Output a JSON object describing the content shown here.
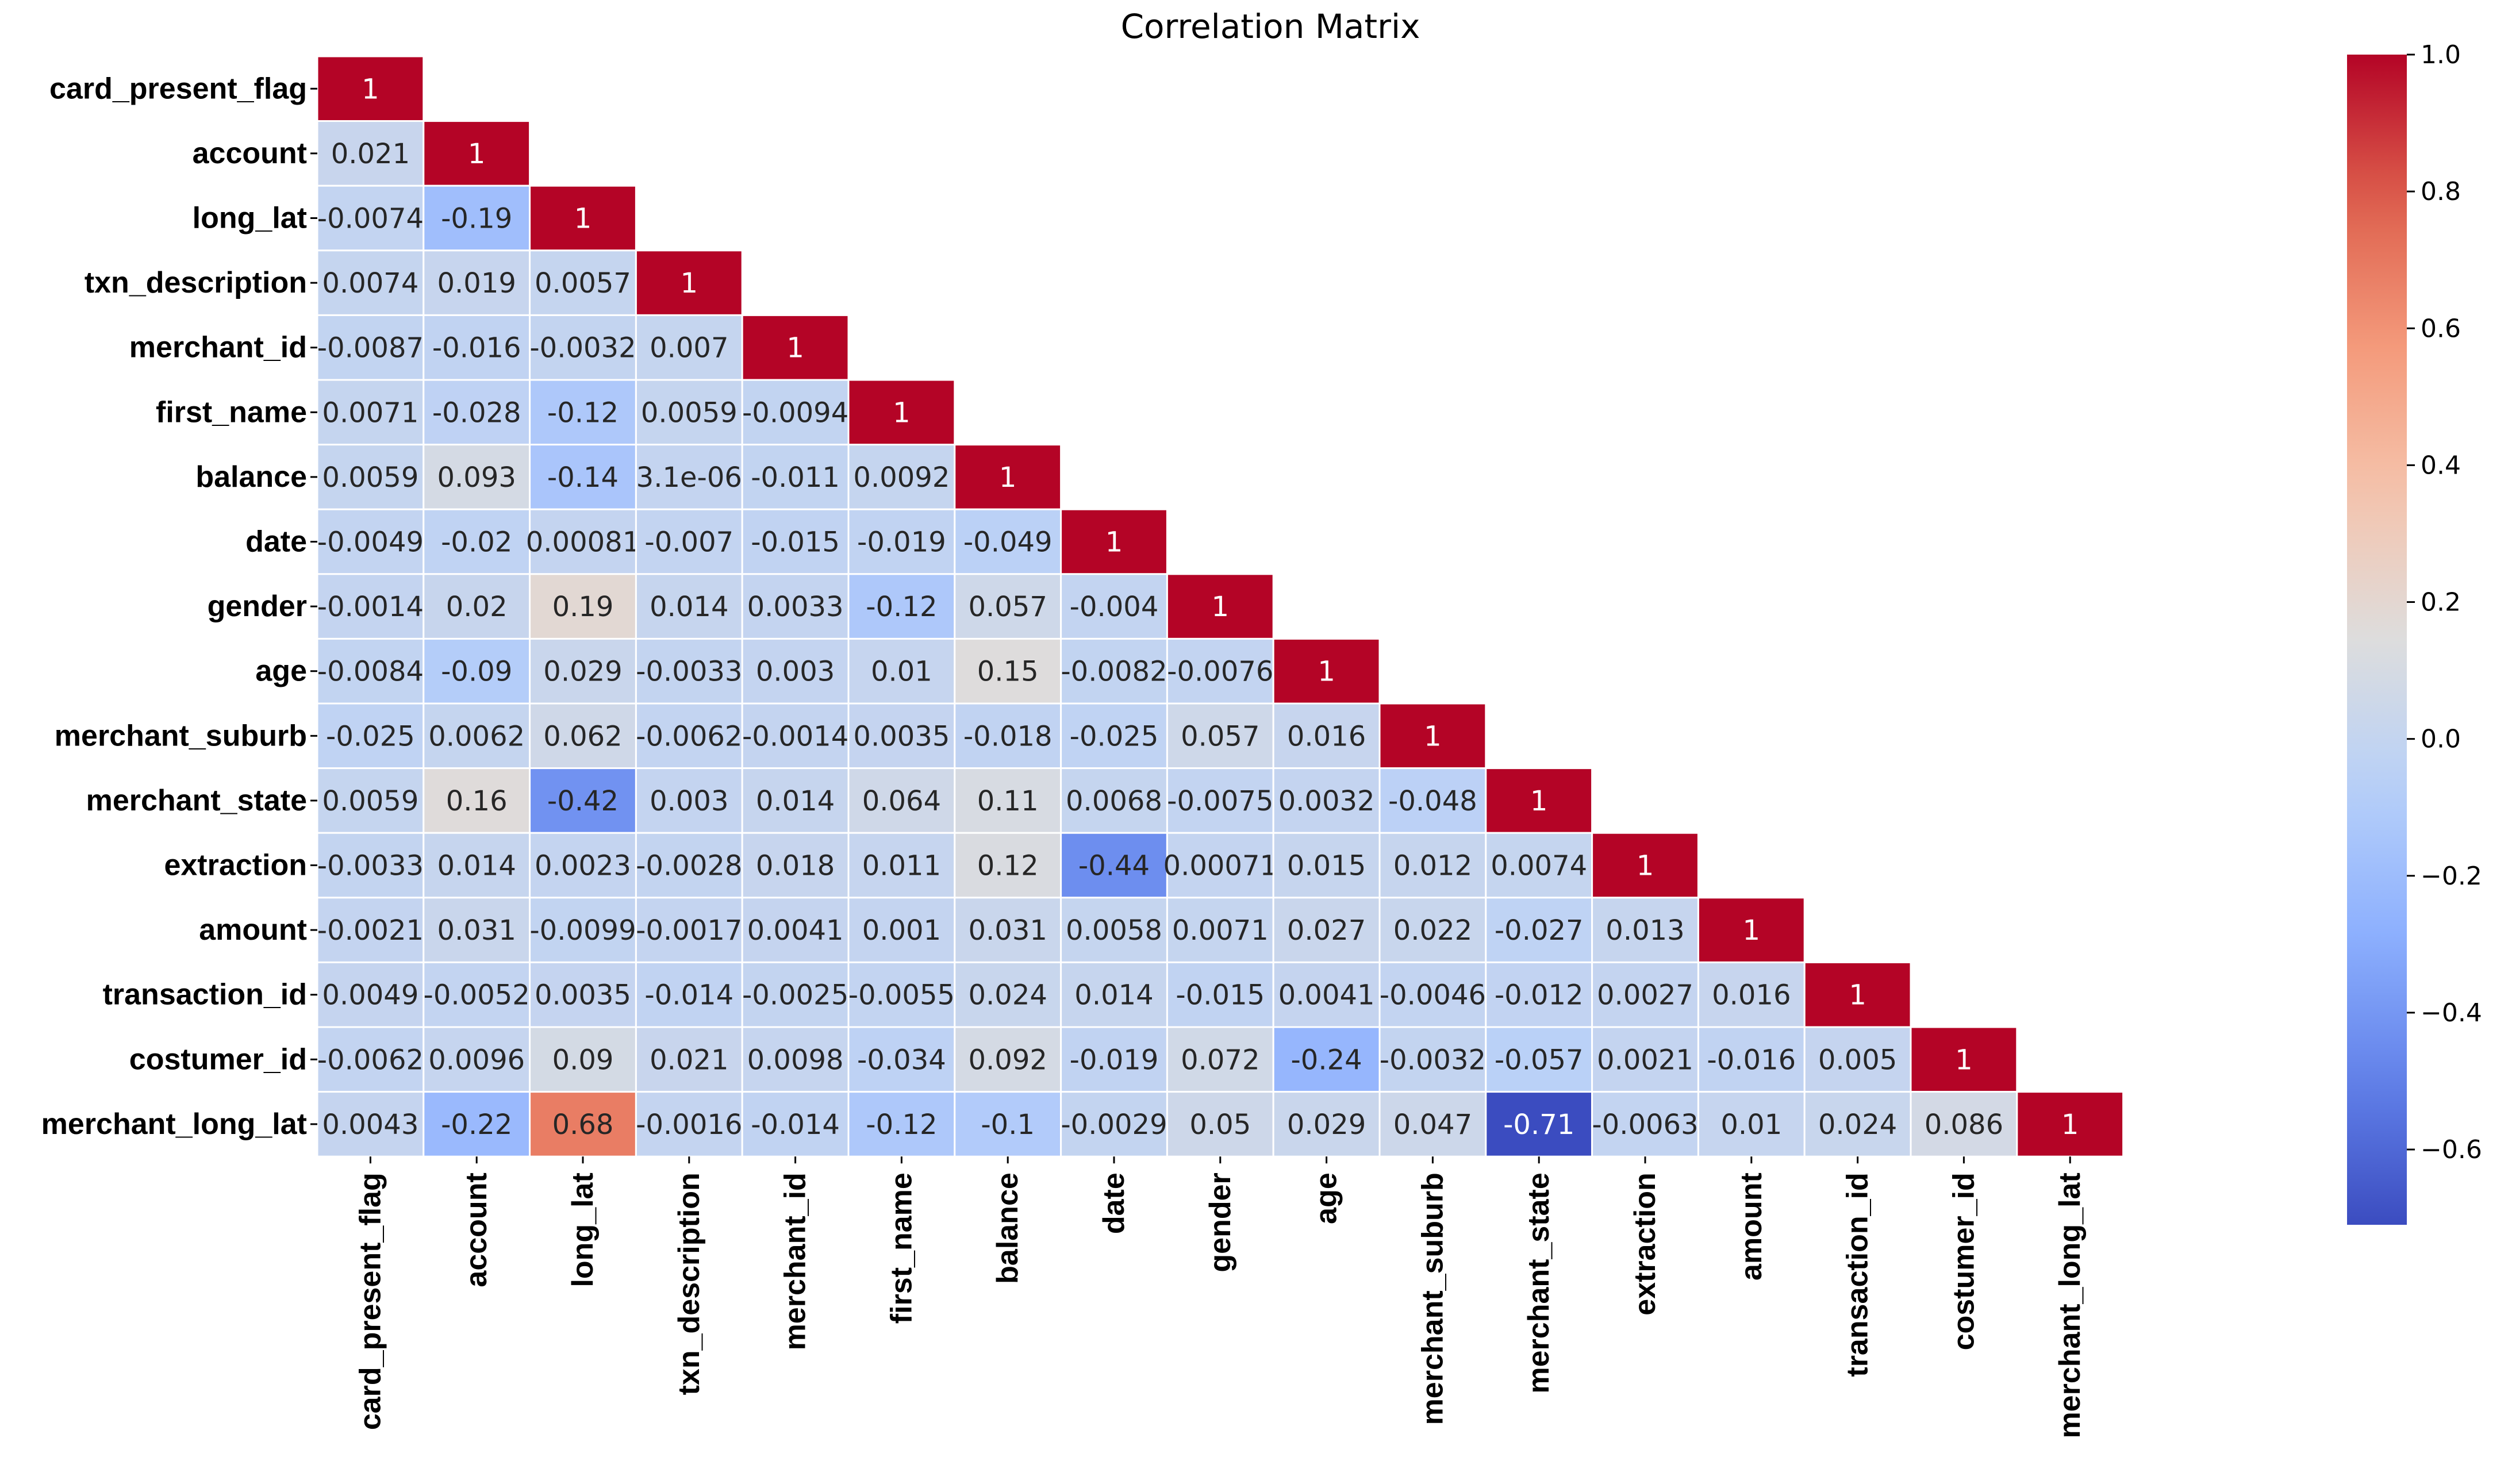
{
  "chart_data": {
    "type": "heatmap",
    "title": "Correlation Matrix",
    "variables": [
      "card_present_flag",
      "account",
      "long_lat",
      "txn_description",
      "merchant_id",
      "first_name",
      "balance",
      "date",
      "gender",
      "age",
      "merchant_suburb",
      "merchant_state",
      "extraction",
      "amount",
      "transaction_id",
      "costumer_id",
      "merchant_long_lat"
    ],
    "matrix_shape": "lower-triangle",
    "rows": [
      {
        "name": "card_present_flag",
        "values": [
          1
        ],
        "labels": [
          "1"
        ]
      },
      {
        "name": "account",
        "values": [
          0.021,
          1
        ],
        "labels": [
          "0.021",
          "1"
        ]
      },
      {
        "name": "long_lat",
        "values": [
          -0.0074,
          -0.19,
          1
        ],
        "labels": [
          "-0.0074",
          "-0.19",
          "1"
        ]
      },
      {
        "name": "txn_description",
        "values": [
          0.0074,
          0.019,
          0.0057,
          1
        ],
        "labels": [
          "0.0074",
          "0.019",
          "0.0057",
          "1"
        ]
      },
      {
        "name": "merchant_id",
        "values": [
          -0.0087,
          -0.016,
          -0.0032,
          0.007,
          1
        ],
        "labels": [
          "-0.0087",
          "-0.016",
          "-0.0032",
          "0.007",
          "1"
        ]
      },
      {
        "name": "first_name",
        "values": [
          0.0071,
          -0.028,
          -0.12,
          0.0059,
          -0.0094,
          1
        ],
        "labels": [
          "0.0071",
          "-0.028",
          "-0.12",
          "0.0059",
          "-0.0094",
          "1"
        ]
      },
      {
        "name": "balance",
        "values": [
          0.0059,
          0.093,
          -0.14,
          3.1e-06,
          -0.011,
          0.0092,
          1
        ],
        "labels": [
          "0.0059",
          "0.093",
          "-0.14",
          "3.1e-06",
          "-0.011",
          "0.0092",
          "1"
        ]
      },
      {
        "name": "date",
        "values": [
          -0.0049,
          -0.02,
          0.00081,
          -0.007,
          -0.015,
          -0.019,
          -0.049,
          1
        ],
        "labels": [
          "-0.0049",
          "-0.02",
          "0.00081",
          "-0.007",
          "-0.015",
          "-0.019",
          "-0.049",
          "1"
        ]
      },
      {
        "name": "gender",
        "values": [
          -0.0014,
          0.02,
          0.19,
          0.014,
          0.0033,
          -0.12,
          0.057,
          -0.004,
          1
        ],
        "labels": [
          "-0.0014",
          "0.02",
          "0.19",
          "0.014",
          "0.0033",
          "-0.12",
          "0.057",
          "-0.004",
          "1"
        ]
      },
      {
        "name": "age",
        "values": [
          -0.0084,
          -0.09,
          0.029,
          -0.0033,
          0.003,
          0.01,
          0.15,
          -0.0082,
          -0.0076,
          1
        ],
        "labels": [
          "-0.0084",
          "-0.09",
          "0.029",
          "-0.0033",
          "0.003",
          "0.01",
          "0.15",
          "-0.0082",
          "-0.0076",
          "1"
        ]
      },
      {
        "name": "merchant_suburb",
        "values": [
          -0.025,
          0.0062,
          0.062,
          -0.0062,
          -0.0014,
          0.0035,
          -0.018,
          -0.025,
          0.057,
          0.016,
          1
        ],
        "labels": [
          "-0.025",
          "0.0062",
          "0.062",
          "-0.0062",
          "-0.0014",
          "0.0035",
          "-0.018",
          "-0.025",
          "0.057",
          "0.016",
          "1"
        ]
      },
      {
        "name": "merchant_state",
        "values": [
          0.0059,
          0.16,
          -0.42,
          0.003,
          0.014,
          0.064,
          0.11,
          0.0068,
          -0.0075,
          0.0032,
          -0.048,
          1
        ],
        "labels": [
          "0.0059",
          "0.16",
          "-0.42",
          "0.003",
          "0.014",
          "0.064",
          "0.11",
          "0.0068",
          "-0.0075",
          "0.0032",
          "-0.048",
          "1"
        ]
      },
      {
        "name": "extraction",
        "values": [
          -0.0033,
          0.014,
          0.0023,
          -0.0028,
          0.018,
          0.011,
          0.12,
          -0.44,
          0.00071,
          0.015,
          0.012,
          0.0074,
          1
        ],
        "labels": [
          "-0.0033",
          "0.014",
          "0.0023",
          "-0.0028",
          "0.018",
          "0.011",
          "0.12",
          "-0.44",
          "0.00071",
          "0.015",
          "0.012",
          "0.0074",
          "1"
        ]
      },
      {
        "name": "amount",
        "values": [
          -0.0021,
          0.031,
          -0.0099,
          -0.0017,
          0.0041,
          0.001,
          0.031,
          0.0058,
          0.0071,
          0.027,
          0.022,
          -0.027,
          0.013,
          1
        ],
        "labels": [
          "-0.0021",
          "0.031",
          "-0.0099",
          "-0.0017",
          "0.0041",
          "0.001",
          "0.031",
          "0.0058",
          "0.0071",
          "0.027",
          "0.022",
          "-0.027",
          "0.013",
          "1"
        ]
      },
      {
        "name": "transaction_id",
        "values": [
          0.0049,
          -0.0052,
          0.0035,
          -0.014,
          -0.0025,
          -0.0055,
          0.024,
          0.014,
          -0.015,
          0.0041,
          -0.0046,
          -0.012,
          0.0027,
          0.016,
          1
        ],
        "labels": [
          "0.0049",
          "-0.0052",
          "0.0035",
          "-0.014",
          "-0.0025",
          "-0.0055",
          "0.024",
          "0.014",
          "-0.015",
          "0.0041",
          "-0.0046",
          "-0.012",
          "0.0027",
          "0.016",
          "1"
        ]
      },
      {
        "name": "costumer_id",
        "values": [
          -0.0062,
          0.0096,
          0.09,
          0.021,
          0.0098,
          -0.034,
          0.092,
          -0.019,
          0.072,
          -0.24,
          -0.0032,
          -0.057,
          0.0021,
          -0.016,
          0.005,
          1
        ],
        "labels": [
          "-0.0062",
          "0.0096",
          "0.09",
          "0.021",
          "0.0098",
          "-0.034",
          "0.092",
          "-0.019",
          "0.072",
          "-0.24",
          "-0.0032",
          "-0.057",
          "0.0021",
          "-0.016",
          "0.005",
          "1"
        ]
      },
      {
        "name": "merchant_long_lat",
        "values": [
          0.0043,
          -0.22,
          0.68,
          -0.0016,
          -0.014,
          -0.12,
          -0.1,
          -0.0029,
          0.05,
          0.029,
          0.047,
          -0.71,
          -0.0063,
          0.01,
          0.024,
          0.086,
          1
        ],
        "labels": [
          "0.0043",
          "-0.22",
          "0.68",
          "-0.0016",
          "-0.014",
          "-0.12",
          "-0.1",
          "-0.0029",
          "0.05",
          "0.029",
          "0.047",
          "-0.71",
          "-0.0063",
          "0.01",
          "0.024",
          "0.086",
          "1"
        ]
      }
    ],
    "colorbar": {
      "colormap": "coolwarm",
      "vmin": -0.71,
      "vmax": 1.0,
      "ticks": [
        1.0,
        0.8,
        0.6,
        0.4,
        0.2,
        0.0,
        -0.2,
        -0.4,
        -0.6
      ],
      "tick_labels": [
        "1.0",
        "0.8",
        "0.6",
        "0.4",
        "0.2",
        "0.0",
        "−0.2",
        "−0.4",
        "−0.6"
      ]
    }
  }
}
